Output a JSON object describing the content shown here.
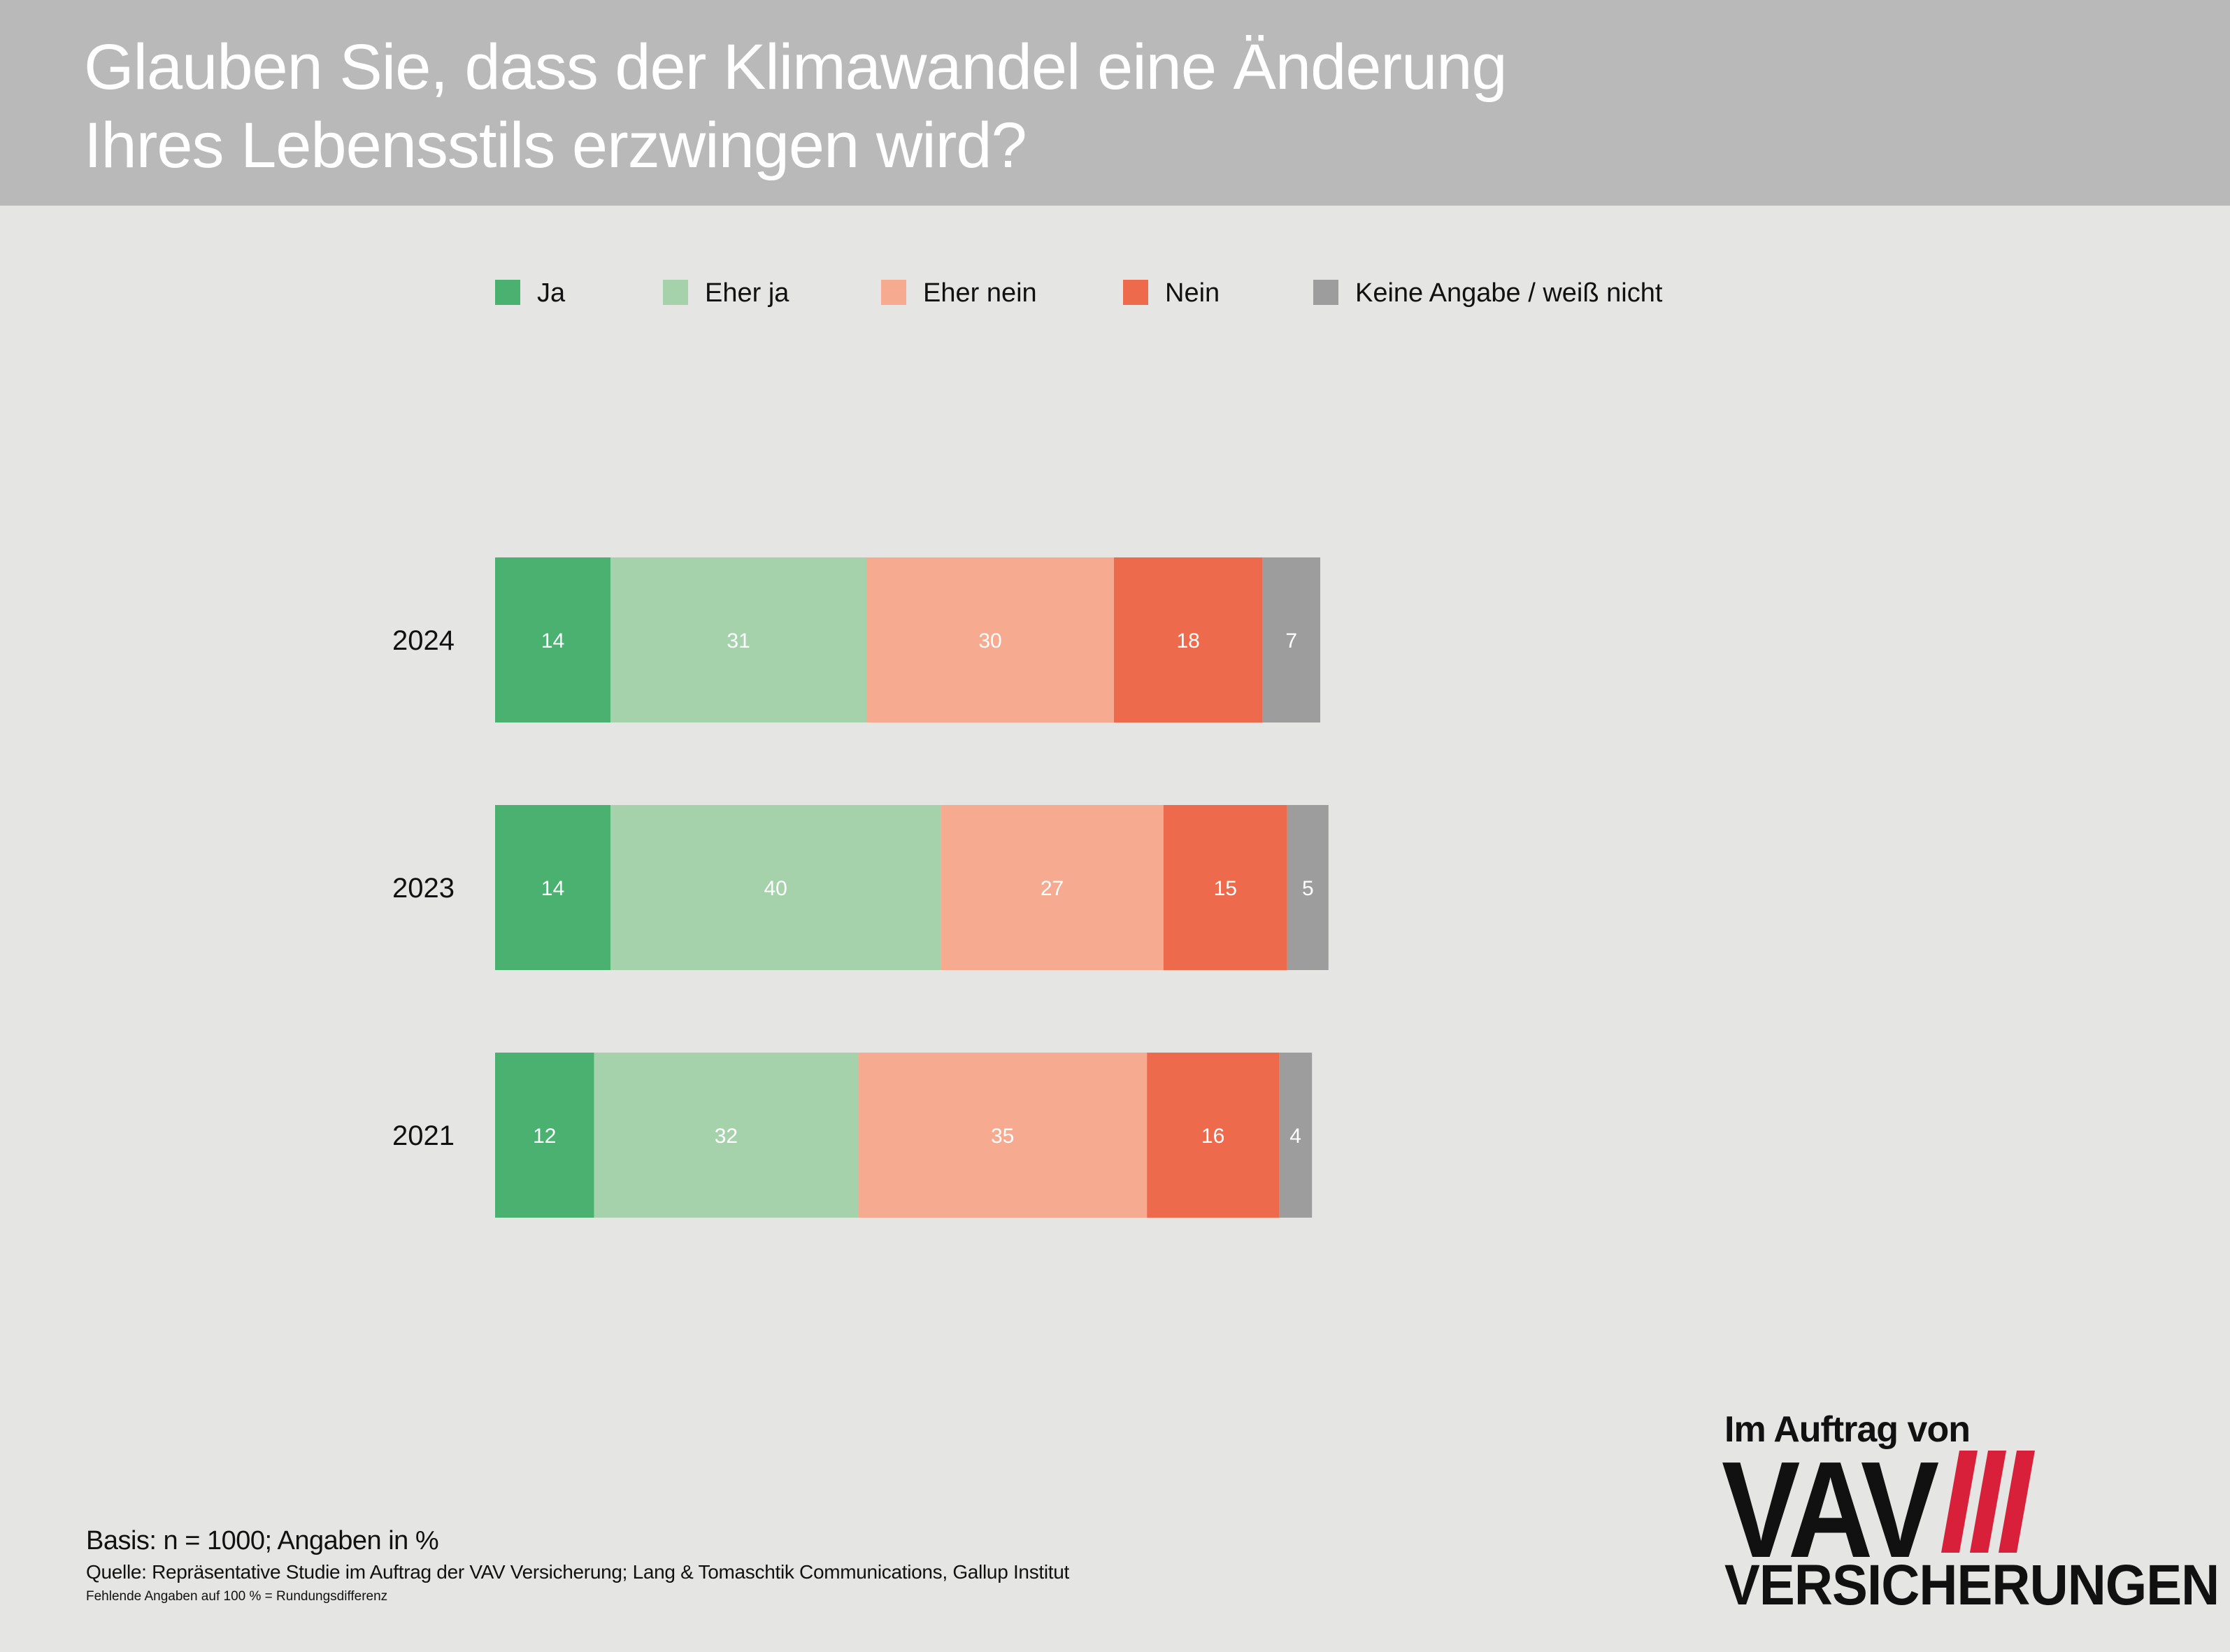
{
  "title_lines": [
    "Glauben Sie, dass der Klimawandel eine Änderung",
    "Ihres Lebensstils erzwingen wird?"
  ],
  "chart_data": {
    "type": "bar",
    "orientation": "horizontal",
    "stacked": true,
    "title": "Glauben Sie, dass der Klimawandel eine Änderung Ihres Lebensstils erzwingen wird?",
    "categories": [
      "2024",
      "2023",
      "2021"
    ],
    "series": [
      {
        "name": "Ja",
        "color": "#4ab170",
        "values": [
          14,
          14,
          12
        ]
      },
      {
        "name": "Eher ja",
        "color": "#a5d2ab",
        "values": [
          31,
          40,
          32
        ]
      },
      {
        "name": "Eher nein",
        "color": "#f6aa8f",
        "values": [
          30,
          27,
          35
        ]
      },
      {
        "name": "Nein",
        "color": "#ee6a4c",
        "values": [
          18,
          15,
          16
        ]
      },
      {
        "name": "Keine Angabe / weiß nicht",
        "color": "#9d9d9d",
        "values": [
          7,
          5,
          4
        ]
      }
    ],
    "legend_position": "top",
    "grid": false,
    "xlim": [
      0,
      100
    ]
  },
  "footer": {
    "basis": "Basis: n = 1000; Angaben in %",
    "source": "Quelle: Repräsentative Studie im Auftrag der VAV Versicherung; Lang & Tomaschtik Communications, Gallup Institut",
    "note": "Fehlende Angaben auf 100 % = Rundungsdifferenz"
  },
  "logo": {
    "intro": "Im Auftrag von",
    "brand": "VAV",
    "word": "VERSICHERUNGEN",
    "stripe_color": "#d8203a"
  },
  "colors": {
    "header_bg": "#b9b9b9",
    "page_bg": "#e5e5e3",
    "data_label": "#ffffff"
  }
}
